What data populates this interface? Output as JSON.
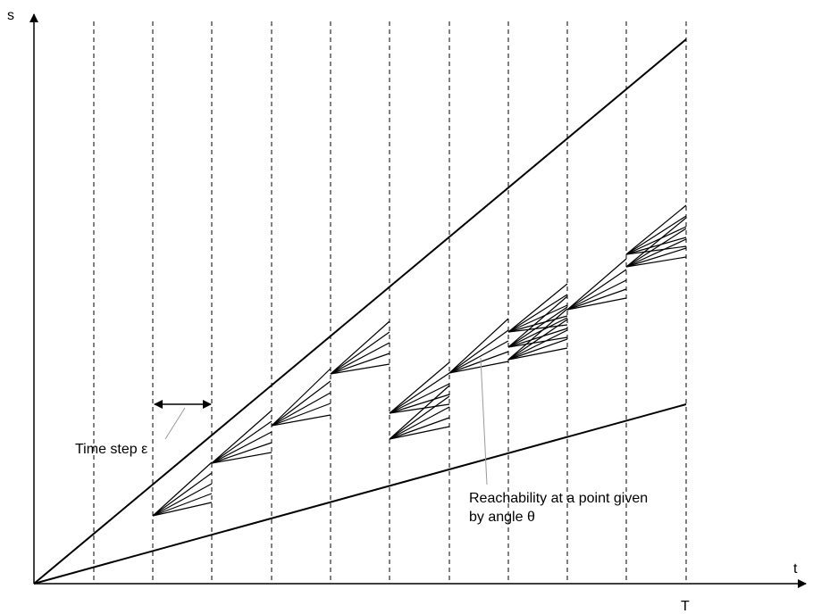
{
  "axes": {
    "y_label": "s",
    "x_label": "t",
    "x_end_label": "T"
  },
  "annotations": {
    "time_step": "Time step ε",
    "reachability_line1": "Reachability at a point given",
    "reachability_line2": "by angle θ"
  },
  "colors": {
    "stroke": "#000000",
    "leader_line": "#999999"
  }
}
